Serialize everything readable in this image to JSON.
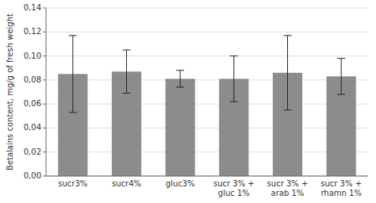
{
  "chart_data": {
    "type": "bar",
    "ylabel": "Betalains content, mg/g of fresh weight",
    "categories": [
      "sucr3%",
      "sucr4%",
      "gluc3%",
      "sucr 3% +\ngluc 1%",
      "sucr 3% +\narab 1%",
      "sucr 3% +\nrhamn 1%"
    ],
    "values": [
      0.085,
      0.087,
      0.081,
      0.081,
      0.086,
      0.083
    ],
    "errors": [
      0.032,
      0.018,
      0.007,
      0.019,
      0.031,
      0.015
    ],
    "color": "#8c8c8c",
    "ylim": [
      0.0,
      0.14
    ],
    "yticks": [
      {
        "value": 0.0,
        "label": "0,00"
      },
      {
        "value": 0.02,
        "label": "0,02"
      },
      {
        "value": 0.04,
        "label": "0,04"
      },
      {
        "value": 0.06,
        "label": "0,06"
      },
      {
        "value": 0.08,
        "label": "0,08"
      },
      {
        "value": 0.1,
        "label": "0,10"
      },
      {
        "value": 0.12,
        "label": "0,12"
      },
      {
        "value": 0.14,
        "label": "0,14"
      }
    ],
    "grid": true
  }
}
